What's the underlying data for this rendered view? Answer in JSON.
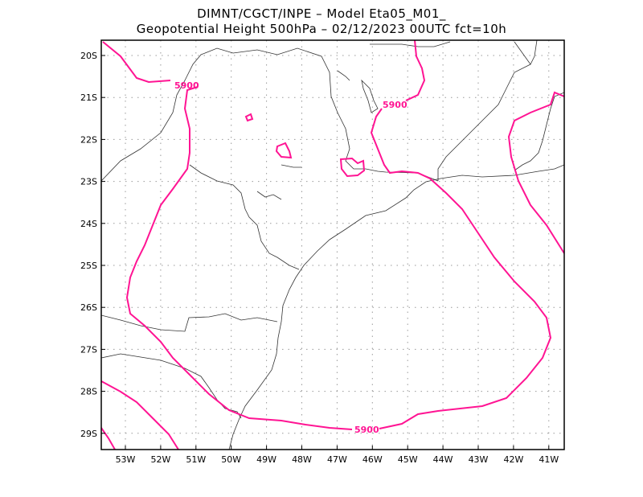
{
  "title": {
    "line1": "DIMNT/CGCT/INPE –  Model Eta05_M01_",
    "line2": "Geopotential Height 500hPa –  02/12/2023 00UTC fct=10h"
  },
  "map": {
    "lon_range": [
      "53.7W",
      "40.6W"
    ],
    "lat_range": [
      "19.6S",
      "29.4S"
    ],
    "lon_ticks": [
      "53W",
      "52W",
      "51W",
      "50W",
      "49W",
      "48W",
      "47W",
      "46W",
      "45W",
      "44W",
      "43W",
      "42W",
      "41W"
    ],
    "lat_ticks": [
      "20S",
      "21S",
      "22S",
      "23S",
      "24S",
      "25S",
      "26S",
      "27S",
      "28S",
      "29S"
    ],
    "contour_color": "#ff1493",
    "contour_labels": [
      "5900",
      "5900",
      "5900"
    ]
  }
}
